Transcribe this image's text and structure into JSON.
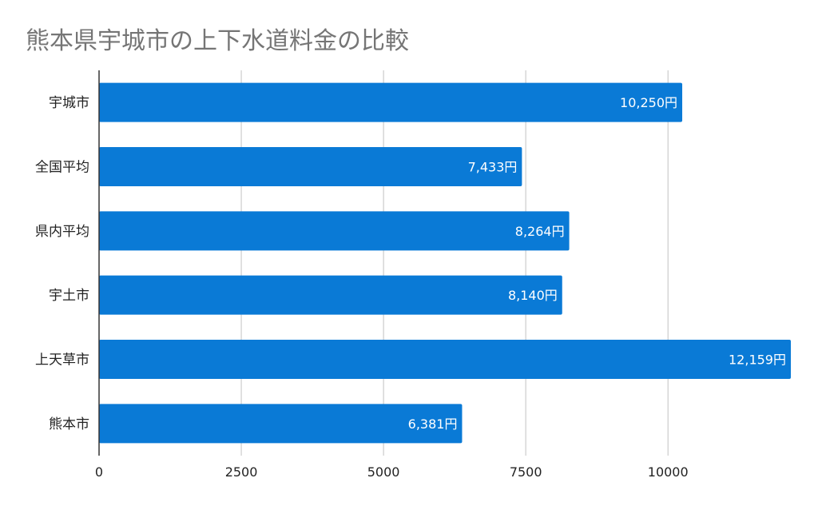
{
  "chart_data": {
    "type": "bar",
    "orientation": "horizontal",
    "title": "熊本県宇城市の上下水道料金の比較",
    "categories": [
      "宇城市",
      "全国平均",
      "県内平均",
      "宇土市",
      "上天草市",
      "熊本市"
    ],
    "values": [
      10250,
      7433,
      8264,
      8140,
      12159,
      6381
    ],
    "data_labels": [
      "10,250円",
      "7,433円",
      "8,264円",
      "8,140円",
      "12,159円",
      "6,381円"
    ],
    "xlabel": "",
    "ylabel": "",
    "xlim": [
      0,
      12159
    ],
    "x_ticks": [
      0,
      2500,
      5000,
      7500,
      10000
    ],
    "x_tick_labels": [
      "0",
      "2500",
      "5000",
      "7500",
      "10000"
    ],
    "grid": "vertical",
    "legend": "none",
    "bar_color": "#0A7AD6"
  }
}
